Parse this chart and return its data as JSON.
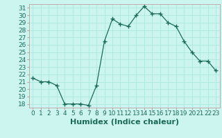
{
  "x": [
    0,
    1,
    2,
    3,
    4,
    5,
    6,
    7,
    8,
    9,
    10,
    11,
    12,
    13,
    14,
    15,
    16,
    17,
    18,
    19,
    20,
    21,
    22,
    23
  ],
  "y": [
    21.5,
    21.0,
    21.0,
    20.5,
    18.0,
    18.0,
    18.0,
    17.8,
    20.5,
    26.5,
    29.5,
    28.8,
    28.5,
    30.0,
    31.2,
    30.2,
    30.2,
    29.0,
    28.5,
    26.5,
    25.0,
    23.8,
    23.8,
    22.5
  ],
  "xlim": [
    -0.5,
    23.5
  ],
  "ylim": [
    17.5,
    31.5
  ],
  "yticks": [
    18,
    19,
    20,
    21,
    22,
    23,
    24,
    25,
    26,
    27,
    28,
    29,
    30,
    31
  ],
  "xticks": [
    0,
    1,
    2,
    3,
    4,
    5,
    6,
    7,
    8,
    9,
    10,
    11,
    12,
    13,
    14,
    15,
    16,
    17,
    18,
    19,
    20,
    21,
    22,
    23
  ],
  "xlabel": "Humidex (Indice chaleur)",
  "line_color": "#1a6b5a",
  "marker": "+",
  "bg_color": "#cdf5f0",
  "grid_color": "#aae8e0",
  "label_color": "#1a6b5a",
  "xlabel_fontsize": 8,
  "tick_fontsize": 6.5
}
